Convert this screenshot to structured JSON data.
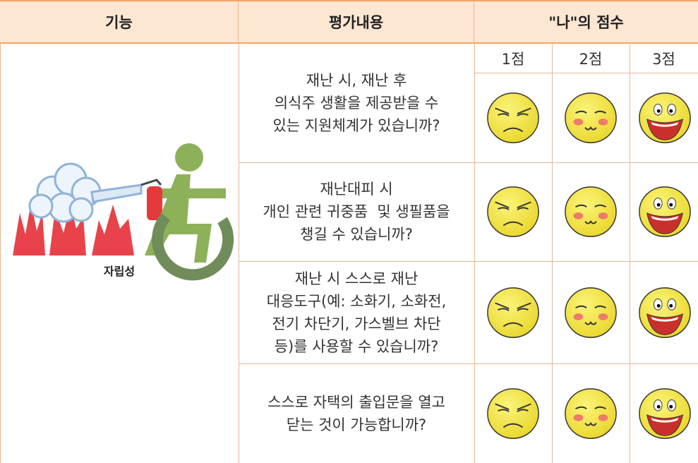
{
  "header": {
    "columns": [
      "기능",
      "평가내용",
      "\"나\"의 점수"
    ]
  },
  "scores": [
    "1점",
    "2점",
    "3점"
  ],
  "function_label": "자립성",
  "rows": [
    {
      "lines": [
        "재난 시, 재난 후",
        "의식주 생활을 제공받을 수",
        "있는 지원체계가 있습니까?"
      ]
    },
    {
      "lines": [
        "재난대피 시",
        "개인 관련 귀중품  및 생필품을",
        "챙길 수 있습니까?"
      ]
    },
    {
      "lines": [
        "재난 시 스스로 재난",
        "대응도구(예: 소화기, 소화전,",
        "전기 차단기, 가스벨브 차단",
        "등)를 사용할 수 있습니까?"
      ]
    },
    {
      "lines": [
        "스스로 자택의 출입문을 열고",
        "닫는 것이 가능합니까?"
      ]
    }
  ]
}
